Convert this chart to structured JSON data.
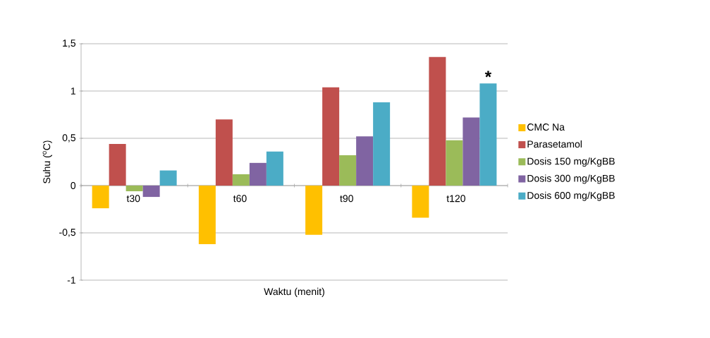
{
  "chart_data": {
    "type": "bar",
    "xlabel": "Waktu (menit)",
    "ylabel": "Suhu ($^{o}$C)",
    "categories": [
      "t30",
      "t60",
      "t90",
      "t120"
    ],
    "series": [
      {
        "name": "CMC Na",
        "color": "#ffc000",
        "values": [
          -0.24,
          -0.62,
          -0.52,
          -0.34
        ]
      },
      {
        "name": "Parasetamol",
        "color": "#c0504d",
        "values": [
          0.44,
          0.7,
          1.04,
          1.36
        ]
      },
      {
        "name": "Dosis 150 mg/KgBB",
        "color": "#9bbb59",
        "values": [
          -0.06,
          0.12,
          0.32,
          0.48
        ]
      },
      {
        "name": "Dosis 300 mg/KgBB",
        "color": "#8064a2",
        "values": [
          -0.12,
          0.24,
          0.52,
          0.72
        ]
      },
      {
        "name": "Dosis 600 mg/KgBB",
        "color": "#4bacc6",
        "values": [
          0.16,
          0.36,
          0.88,
          1.08
        ]
      }
    ],
    "ylim": [
      -1,
      1.5
    ],
    "yticks": [
      {
        "value": -1,
        "label": "-1"
      },
      {
        "value": -0.5,
        "label": "-0,5"
      },
      {
        "value": 0,
        "label": "0"
      },
      {
        "value": 0.5,
        "label": "0,5"
      },
      {
        "value": 1,
        "label": "1"
      },
      {
        "value": 1.5,
        "label": "1,5"
      }
    ],
    "grid": "y",
    "legend": "right",
    "annotations": [
      "*"
    ]
  }
}
